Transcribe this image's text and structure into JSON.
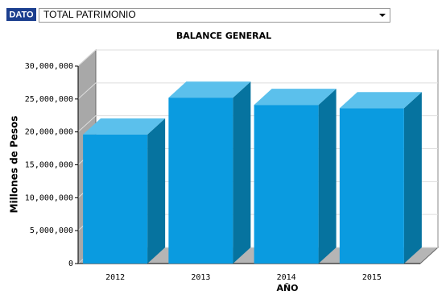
{
  "dropdown": {
    "label": "DATO",
    "selected": "TOTAL PATRIMONIO"
  },
  "chart_data": {
    "type": "bar3d",
    "title": "BALANCE GENERAL",
    "x_label": "AÑO",
    "y_label": "Millones de Pesos",
    "categories": [
      "2012",
      "2013",
      "2014",
      "2015"
    ],
    "values": [
      19600000,
      25200000,
      24100000,
      23600000
    ],
    "color": "#0a9be0",
    "ylim": [
      0,
      30000000
    ],
    "yticks": [
      0,
      {
        "value": 5000000,
        "label": "5,000,000"
      },
      {
        "value": 10000000,
        "label": "10,000,000"
      },
      {
        "value": 15000000,
        "label": "15,000,000"
      },
      {
        "value": 20000000,
        "label": "20,000,000"
      },
      {
        "value": 25000000,
        "label": "25,000,000"
      },
      {
        "value": 30000000,
        "label": "30,000,000"
      }
    ],
    "grid": true
  }
}
